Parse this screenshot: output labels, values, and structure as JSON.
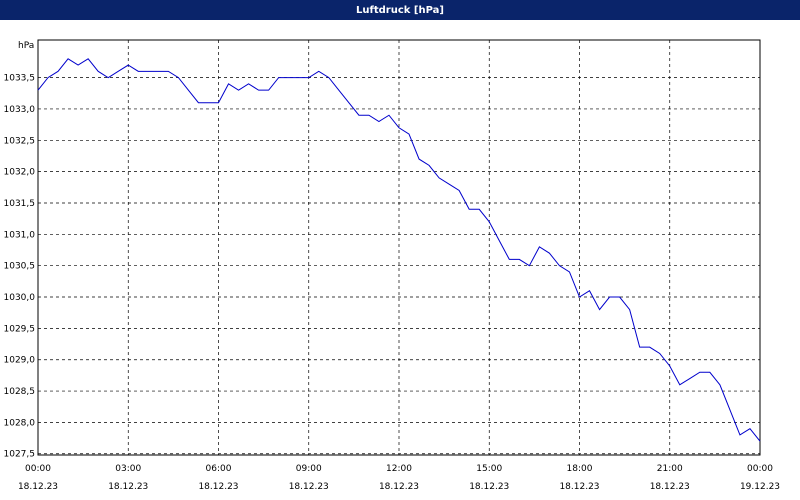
{
  "chart_data": {
    "type": "line",
    "title": "Luftdruck [hPa]",
    "y_label": "hPa",
    "x": [
      0,
      0.333,
      0.667,
      1,
      1.333,
      1.667,
      2,
      2.333,
      2.667,
      3,
      3.333,
      3.667,
      4,
      4.333,
      4.667,
      5,
      5.333,
      5.667,
      6,
      6.333,
      6.667,
      7,
      7.333,
      7.667,
      8,
      8.333,
      8.667,
      9,
      9.333,
      9.667,
      10,
      10.333,
      10.667,
      11,
      11.333,
      11.667,
      12,
      12.333,
      12.667,
      13,
      13.333,
      13.667,
      14,
      14.333,
      14.667,
      15,
      15.333,
      15.667,
      16,
      16.333,
      16.667,
      17,
      17.333,
      17.667,
      18,
      18.333,
      18.667,
      19,
      19.333,
      19.667,
      20,
      20.333,
      20.667,
      21,
      21.333,
      21.667,
      22,
      22.333,
      22.667,
      23,
      23.333,
      23.667,
      24
    ],
    "series": [
      {
        "name": "Luftdruck",
        "color": "#0000cc",
        "values": [
          1033.3,
          1033.5,
          1033.6,
          1033.8,
          1033.7,
          1033.8,
          1033.6,
          1033.5,
          1033.6,
          1033.7,
          1033.6,
          1033.6,
          1033.6,
          1033.6,
          1033.5,
          1033.3,
          1033.1,
          1033.1,
          1033.1,
          1033.4,
          1033.3,
          1033.4,
          1033.3,
          1033.3,
          1033.5,
          1033.5,
          1033.5,
          1033.5,
          1033.6,
          1033.5,
          1033.3,
          1033.1,
          1032.9,
          1032.9,
          1032.8,
          1032.9,
          1032.7,
          1032.6,
          1032.2,
          1032.1,
          1031.9,
          1031.8,
          1031.7,
          1031.4,
          1031.4,
          1031.2,
          1030.9,
          1030.6,
          1030.6,
          1030.5,
          1030.8,
          1030.7,
          1030.5,
          1030.4,
          1030.0,
          1030.1,
          1029.8,
          1030.0,
          1030.0,
          1029.8,
          1029.2,
          1029.2,
          1029.1,
          1028.9,
          1028.6,
          1028.7,
          1028.8,
          1028.8,
          1028.6,
          1028.2,
          1027.8,
          1027.9,
          1027.7
        ]
      }
    ],
    "xlim": [
      0,
      24
    ],
    "xticks": [
      {
        "value": 0,
        "label": "00:00\n18.12.23"
      },
      {
        "value": 3,
        "label": "03:00\n18.12.23"
      },
      {
        "value": 6,
        "label": "06:00\n18.12.23"
      },
      {
        "value": 9,
        "label": "09:00\n18.12.23"
      },
      {
        "value": 12,
        "label": "12:00\n18.12.23"
      },
      {
        "value": 15,
        "label": "15:00\n18.12.23"
      },
      {
        "value": 18,
        "label": "18:00\n18.12.23"
      },
      {
        "value": 21,
        "label": "21:00\n18.12.23"
      },
      {
        "value": 24,
        "label": "00:00\n19.12.23"
      }
    ],
    "ylim": [
      1027.48,
      1034.1
    ],
    "yticks": [
      {
        "value": 1027.5,
        "label": "1027,5"
      },
      {
        "value": 1028,
        "label": "1028,0"
      },
      {
        "value": 1028.5,
        "label": "1028,5"
      },
      {
        "value": 1029,
        "label": "1029,0"
      },
      {
        "value": 1029.5,
        "label": "1029,5"
      },
      {
        "value": 1030,
        "label": "1030,0"
      },
      {
        "value": 1030.5,
        "label": "1030,5"
      },
      {
        "value": 1031,
        "label": "1031,0"
      },
      {
        "value": 1031.5,
        "label": "1031,5"
      },
      {
        "value": 1032,
        "label": "1032,0"
      },
      {
        "value": 1032.5,
        "label": "1032,5"
      },
      {
        "value": 1033,
        "label": "1033,0"
      },
      {
        "value": 1033.5,
        "label": "1033,5"
      }
    ],
    "grid": true
  }
}
